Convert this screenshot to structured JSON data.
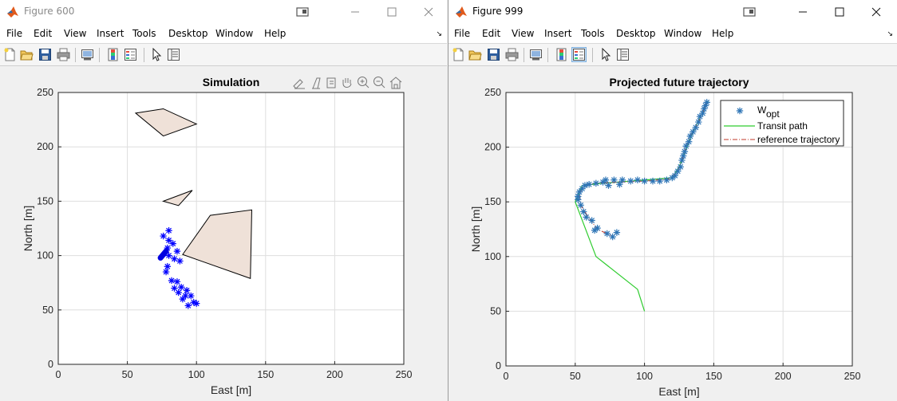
{
  "windows": [
    {
      "title": "Figure 600",
      "menu": [
        "File",
        "Edit",
        "View",
        "Insert",
        "Tools",
        "Desktop",
        "Window",
        "Help"
      ],
      "chart_data": {
        "type": "scatter",
        "title": "Simulation",
        "xlabel": "East [m]",
        "ylabel": "North [m]",
        "xlim": [
          0,
          250
        ],
        "ylim": [
          0,
          250
        ],
        "xticks": [
          "0",
          "50",
          "100",
          "150",
          "200",
          "250"
        ],
        "yticks": [
          "0",
          "50",
          "100",
          "150",
          "200",
          "250"
        ],
        "grid": true,
        "obstacles": [
          {
            "fill": "#efe1d8",
            "points": [
              [
                56,
                231
              ],
              [
                76,
                235
              ],
              [
                100,
                221
              ],
              [
                76,
                210
              ]
            ]
          },
          {
            "fill": "#efe1d8",
            "points": [
              [
                76,
                150
              ],
              [
                97,
                160
              ],
              [
                87,
                146
              ]
            ]
          },
          {
            "fill": "#efe1d8",
            "points": [
              [
                90,
                101
              ],
              [
                110,
                137
              ],
              [
                140,
                142
              ],
              [
                139,
                79
              ]
            ]
          }
        ],
        "waypoints": {
          "color": "#0000ff",
          "points": [
            [
              80,
              123
            ],
            [
              76,
              118
            ],
            [
              80,
              114
            ],
            [
              83,
              111
            ],
            [
              79,
              107
            ],
            [
              86,
              104
            ],
            [
              80,
              100
            ],
            [
              84,
              97
            ],
            [
              88,
              95
            ],
            [
              79,
              90
            ],
            [
              78,
              85
            ],
            [
              82,
              77
            ],
            [
              86,
              76
            ],
            [
              84,
              70
            ],
            [
              89,
              71
            ],
            [
              87,
              66
            ],
            [
              93,
              68
            ],
            [
              92,
              63
            ],
            [
              96,
              63
            ],
            [
              90,
              60
            ],
            [
              98,
              57
            ],
            [
              94,
              54
            ],
            [
              100,
              56
            ]
          ]
        },
        "vehicle": {
          "color": "#0000e0",
          "x": 76,
          "y": 101
        }
      }
    },
    {
      "title": "Figure 999",
      "menu": [
        "File",
        "Edit",
        "View",
        "Insert",
        "Tools",
        "Desktop",
        "Window",
        "Help"
      ],
      "chart_data": {
        "type": "line",
        "title": "Projected future trajectory",
        "xlabel": "East [m]",
        "ylabel": "North [m]",
        "xlim": [
          0,
          250
        ],
        "ylim": [
          0,
          250
        ],
        "xticks": [
          "0",
          "50",
          "100",
          "150",
          "200",
          "250"
        ],
        "yticks": [
          "0",
          "50",
          "100",
          "150",
          "200",
          "250"
        ],
        "grid": true,
        "legend": {
          "placement": "top-right",
          "entries": [
            {
              "label": "W",
              "sub": "opt",
              "style": "marker",
              "color": "#2e75b6"
            },
            {
              "label": "Transit path",
              "style": "solid",
              "color": "#2ecc2e"
            },
            {
              "label": "reference trajectory",
              "style": "dashdot",
              "color": "#c0392b"
            }
          ]
        },
        "series": [
          {
            "name": "W_opt",
            "color": "#2e75b6",
            "marker": "*",
            "points": [
              [
                80,
                122
              ],
              [
                77,
                118
              ],
              [
                73,
                121
              ],
              [
                66,
                126
              ],
              [
                64,
                124
              ],
              [
                62,
                133
              ],
              [
                58,
                136
              ],
              [
                56,
                141
              ],
              [
                54,
                147
              ],
              [
                52,
                152
              ],
              [
                52,
                155
              ],
              [
                53,
                159
              ],
              [
                55,
                162
              ],
              [
                57,
                165
              ],
              [
                60,
                166
              ],
              [
                65,
                167
              ],
              [
                70,
                168
              ],
              [
                72,
                170
              ],
              [
                74,
                165
              ],
              [
                78,
                170
              ],
              [
                82,
                166
              ],
              [
                84,
                170
              ],
              [
                90,
                169
              ],
              [
                95,
                170
              ],
              [
                100,
                169
              ],
              [
                106,
                169
              ],
              [
                111,
                169
              ],
              [
                116,
                170
              ],
              [
                120,
                172
              ],
              [
                122,
                174
              ],
              [
                124,
                178
              ],
              [
                126,
                182
              ],
              [
                127,
                188
              ],
              [
                128,
                192
              ],
              [
                129,
                196
              ],
              [
                130,
                201
              ],
              [
                132,
                205
              ],
              [
                133,
                210
              ],
              [
                135,
                214
              ],
              [
                137,
                218
              ],
              [
                139,
                223
              ],
              [
                140,
                228
              ],
              [
                142,
                231
              ],
              [
                143,
                235
              ],
              [
                144,
                238
              ],
              [
                145,
                241
              ]
            ]
          },
          {
            "name": "Transit path",
            "color": "#2ecc2e",
            "style": "solid",
            "points": [
              [
                100,
                50
              ],
              [
                95,
                70
              ],
              [
                65,
                100
              ],
              [
                50,
                150
              ],
              [
                55,
                165
              ],
              [
                70,
                167
              ],
              [
                120,
                172
              ],
              [
                125,
                182
              ],
              [
                135,
                214
              ],
              [
                146,
                242
              ]
            ]
          },
          {
            "name": "reference trajectory",
            "color": "#c0392b",
            "style": "dashdot",
            "points": [
              [
                78,
                118
              ],
              [
                66,
                125
              ],
              [
                60,
                135
              ],
              [
                54,
                147
              ],
              [
                53,
                158
              ],
              [
                57,
                165
              ],
              [
                65,
                167
              ],
              [
                80,
                168
              ],
              [
                100,
                169
              ],
              [
                118,
                171
              ],
              [
                124,
                178
              ],
              [
                128,
                192
              ],
              [
                133,
                210
              ],
              [
                139,
                223
              ],
              [
                145,
                241
              ]
            ]
          }
        ]
      }
    }
  ]
}
